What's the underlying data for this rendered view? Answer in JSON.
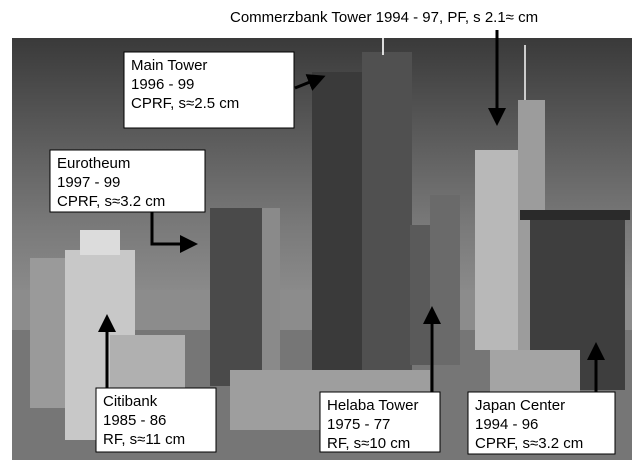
{
  "title": "Commerzbank Tower 1994 - 97, PF, s  2.1≈ cm",
  "labels": [
    {
      "name": "Main Tower",
      "years": "1996 - 99",
      "detail": "CPRF, s≈2.5 cm"
    },
    {
      "name": "Eurotheum",
      "years": "1997 - 99",
      "detail": "CPRF, s≈3.2 cm"
    },
    {
      "name": "Citibank",
      "years": "1985 - 86",
      "detail": "RF, s≈11 cm"
    },
    {
      "name": "Helaba Tower",
      "years": "1975 - 77",
      "detail": "RF, s≈10 cm"
    },
    {
      "name": "Japan Center",
      "years": "1994 - 96",
      "detail": "CPRF, s≈3.2 cm"
    }
  ]
}
